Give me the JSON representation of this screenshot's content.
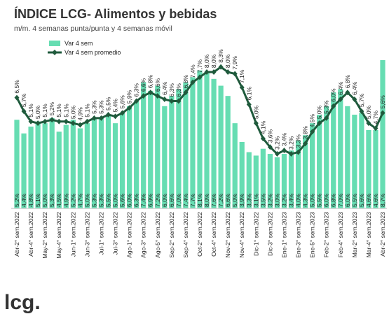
{
  "logo": "lcg.",
  "chart_data": {
    "type": "bar_line",
    "title": "ÍNDICE LCG- Alimentos y bebidas",
    "subtitle": "m/m. 4 semanas punta/punta y 4 semanas móvil",
    "categories": [
      "Abr-2° sem.2022",
      null,
      "Abr-4° sem.2022",
      null,
      "May-2° sem.2022",
      null,
      "May-4° sem.2022",
      null,
      "Jun-1° sem.2022",
      null,
      "Jun-3° sem.2022",
      null,
      "Jul-1° sem.2022",
      null,
      "Jul-3° sem.2022",
      null,
      "Ago-1° sem.2022",
      null,
      "Ago-3° sem.2022",
      null,
      "Ago-5° sem.2022",
      null,
      "Sep-2° sem.2022",
      null,
      "Sep-4° sem.2022",
      null,
      "Oct-2° sem.2022",
      null,
      "Oct-4° sem.2022",
      null,
      "Nov-2° sem.2022",
      null,
      "Nov-4° sem.2022",
      null,
      "Dic-1° sem.2022",
      null,
      "Dic-3° sem.2022",
      null,
      "Ene-1° sem.2023",
      null,
      "Ene-3° sem.2023",
      null,
      "Ene-5° sem.2023",
      null,
      "Feb-2° sem.2023",
      null,
      "Feb-4° sem.2023",
      null,
      "Mar-2° sem.2023",
      null,
      "Mar-4° sem.2023",
      null,
      "Abr-2° sem.2023"
    ],
    "series": [
      {
        "name": "Var 4 sem",
        "kind": "bar",
        "color": "#66ddb2",
        "values": [
          5.2,
          4.4,
          4.8,
          5.1,
          5.0,
          5.3,
          4.5,
          4.9,
          5.2,
          4.7,
          5.0,
          5.3,
          5.3,
          5.5,
          5.0,
          5.6,
          6.0,
          6.3,
          7.4,
          6.9,
          7.2,
          6.0,
          6.6,
          7.0,
          7.4,
          7.7,
          8.1,
          8.0,
          7.6,
          7.2,
          6.6,
          5.0,
          3.9,
          3.3,
          3.1,
          3.5,
          3.2,
          3.0,
          3.2,
          3.4,
          4.0,
          4.3,
          5.0,
          5.5,
          6.0,
          6.8,
          7.0,
          6.0,
          5.5,
          5.6,
          4.6,
          4.6,
          8.7
        ],
        "value_labels": [
          "5,2%",
          "4,4%",
          "4,8%",
          "5,1%",
          "5,0%",
          "5,3%",
          "4,5%",
          "4,9%",
          "5,2%",
          "4,7%",
          "5,0%",
          "5,3%",
          "5,3%",
          "5,5%",
          "5,0%",
          "5,6%",
          "6,0%",
          "6,3%",
          "7,4%",
          "6,9%",
          "7,2%",
          "6,0%",
          "6,6%",
          "7,0%",
          "7,4%",
          "7,7%",
          "8,1%",
          "8,0%",
          "7,6%",
          "7,2%",
          "6,6%",
          "5,0%",
          "3,9%",
          "3,3%",
          "3,1%",
          "3,5%",
          "3,2%",
          "3,0%",
          "3,2%",
          "3,4%",
          "4,0%",
          "4,3%",
          "5,0%",
          "5,5%",
          "6,0%",
          "6,8%",
          "7,0%",
          "6,0%",
          "5,5%",
          "5,6%",
          "4,6%",
          "4,6%",
          "8,7%"
        ]
      },
      {
        "name": "Var 4 sem promedio",
        "kind": "line",
        "color": "#1f5a3c",
        "values": [
          6.5,
          5.7,
          5.1,
          5.0,
          5.1,
          5.2,
          5.1,
          5.1,
          5.0,
          4.9,
          5.1,
          5.3,
          5.3,
          5.5,
          5.4,
          5.6,
          5.9,
          6.3,
          6.6,
          6.8,
          6.6,
          6.4,
          6.3,
          6.3,
          6.8,
          7.4,
          7.7,
          8.0,
          8.0,
          8.3,
          8.0,
          7.9,
          7.1,
          6.1,
          5.0,
          4.1,
          3.6,
          3.2,
          3.4,
          3.2,
          3.3,
          3.8,
          4.5,
          5.0,
          5.3,
          6.0,
          6.4,
          6.8,
          6.4,
          5.7,
          5.0,
          4.7,
          5.6
        ],
        "value_labels": [
          "6,5%",
          "5,7%",
          "5,1%",
          "5,0%",
          "5,1%",
          "5,2%",
          "5,1%",
          "5,1%",
          "5,0%",
          "4,9%",
          "5,1%",
          "5,3%",
          "5,3%",
          "5,5%",
          "5,4%",
          "5,6%",
          "5,9%",
          "6,3%",
          "6,6%",
          "6,8%",
          "6,6%",
          "6,4%",
          "6,3%",
          "6,3%",
          "6,8%",
          "7,4%",
          "7,7%",
          "8,0%",
          "8,0%",
          "8,3%",
          "8,0%",
          "7,9%",
          "7,1%",
          "6,1%",
          "5,0%",
          "4,1%",
          "3,6%",
          "3,2%",
          "3,4%",
          "3,2%",
          "3,3%",
          "3,8%",
          "4,5%",
          "5,0%",
          "5,3%",
          "6,0%",
          "6,4%",
          "6,8%",
          "6,4%",
          "5,7%",
          "5,0%",
          "4,7%",
          "5,6%"
        ]
      }
    ]
  }
}
